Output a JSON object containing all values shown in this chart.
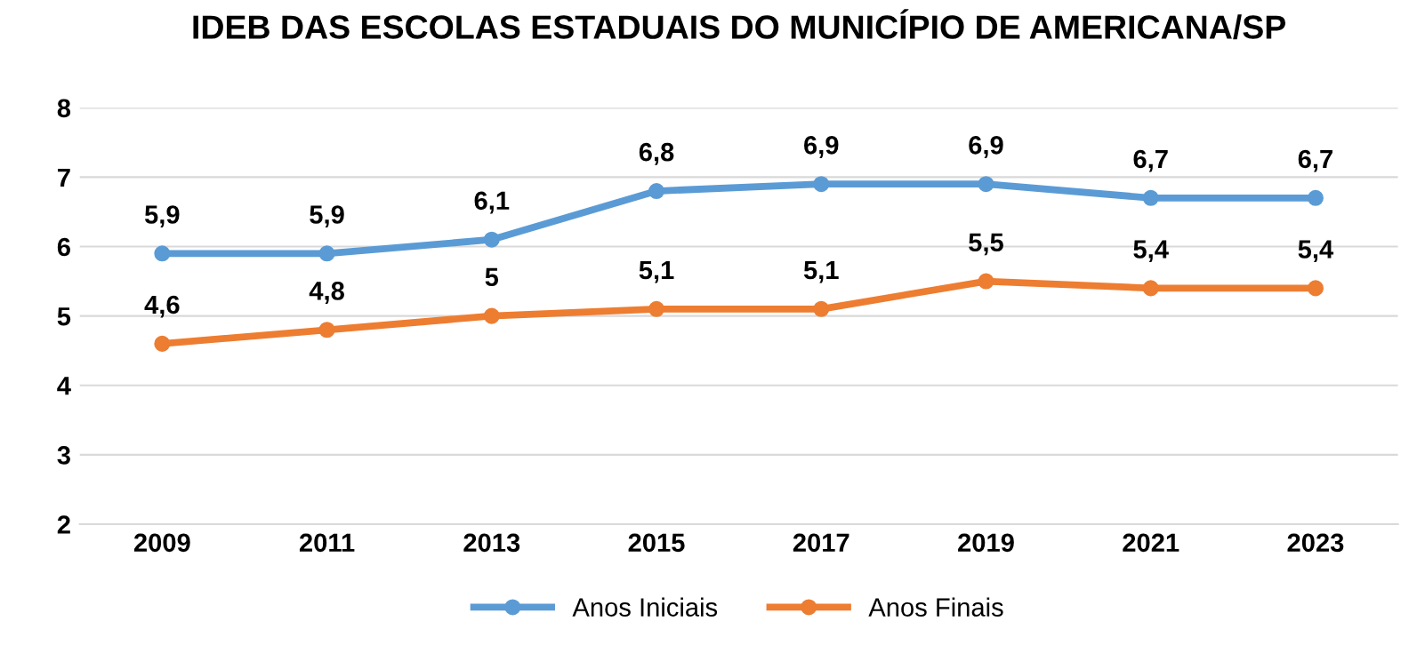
{
  "chart_data": {
    "type": "line",
    "title": "IDEB DAS ESCOLAS ESTADUAIS DO MUNICÍPIO DE AMERICANA/SP",
    "categories": [
      "2009",
      "2011",
      "2013",
      "2015",
      "2017",
      "2019",
      "2021",
      "2023"
    ],
    "series": [
      {
        "name": "Anos Iniciais",
        "color": "#5b9bd5",
        "values": [
          5.9,
          5.9,
          6.1,
          6.8,
          6.9,
          6.9,
          6.7,
          6.7
        ],
        "value_labels": [
          "5,9",
          "5,9",
          "6,1",
          "6,8",
          "6,9",
          "6,9",
          "6,7",
          "6,7"
        ]
      },
      {
        "name": "Anos Finais",
        "color": "#ed7d31",
        "values": [
          4.6,
          4.8,
          5,
          5.1,
          5.1,
          5.5,
          5.4,
          5.4
        ],
        "value_labels": [
          "4,6",
          "4,8",
          "5",
          "5,1",
          "5,1",
          "5,5",
          "5,4",
          "5,4"
        ]
      }
    ],
    "ylim": [
      2,
      8
    ],
    "yticks": [
      2,
      3,
      4,
      5,
      6,
      7,
      8
    ],
    "grid": "y",
    "legend": "bottom",
    "marker": "circle",
    "line_style": "solid"
  }
}
